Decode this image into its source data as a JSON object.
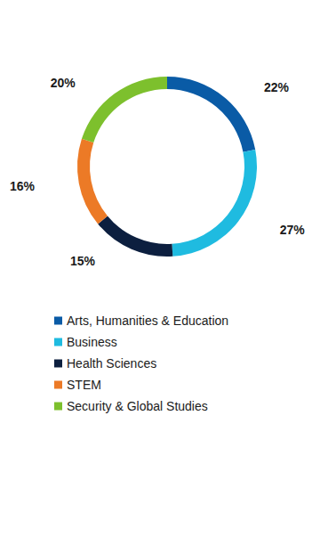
{
  "chart_data": {
    "type": "pie",
    "categories": [
      "Arts, Humanities & Education",
      "Business",
      "Health Sciences",
      "STEM",
      "Security & Global Studies"
    ],
    "values": [
      22,
      27,
      15,
      16,
      20
    ],
    "value_labels": [
      "22%",
      "27%",
      "15%",
      "16%",
      "20%"
    ],
    "colors": [
      "#0a5ba6",
      "#1fbbe0",
      "#0c1f3f",
      "#ec7a26",
      "#7dc02d"
    ],
    "data_labels": true,
    "legend": "bottom"
  }
}
